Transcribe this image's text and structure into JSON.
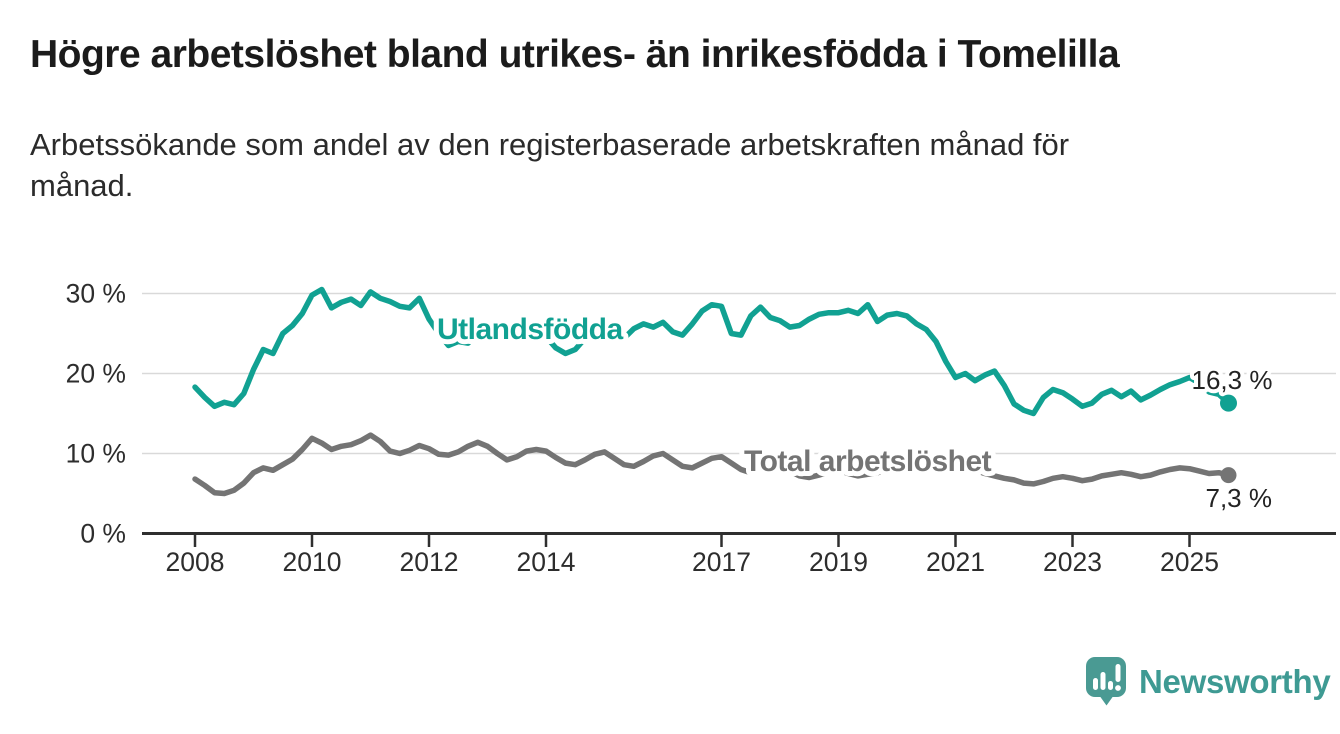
{
  "title": "Högre arbetslöshet bland utrikes- än inrikesfödda i Tomelilla",
  "subtitle": {
    "line1": "Arbetssökande som andel av den registerbaserade arbetskraften månad för",
    "line2": "månad."
  },
  "brand": {
    "name": "Newsworthy"
  },
  "colors": {
    "teal_line": "#11a192",
    "gray_line": "#747474",
    "grid": "#d9d9d9",
    "axis": "#2f2f2f",
    "axis_text": "#2d2d2d",
    "end_label_text": "#232323",
    "logo_teal": "#4a9a93"
  },
  "chart_data": {
    "type": "line",
    "title": "Högre arbetslöshet bland utrikes- än inrikesfödda i Tomelilla",
    "subtitle": "Arbetssökande som andel av den registerbaserade arbetskraften månad för månad.",
    "unit": "%",
    "grid": true,
    "x_axis": {
      "start_year": 2008,
      "points_per_year": 6,
      "tick_years": [
        2008,
        2010,
        2012,
        2014,
        2017,
        2019,
        2021,
        2023,
        2025
      ]
    },
    "y_axis": {
      "min": 0,
      "max": 32,
      "tick_values": [
        0,
        10,
        20,
        30
      ],
      "tick_labels": [
        "0 %",
        "10 %",
        "20 %",
        "30 %"
      ]
    },
    "series": [
      {
        "name": "Utlandsfödda",
        "color": "#11a192",
        "end_value": 16.3,
        "end_label": "16,3 %",
        "values": [
          18.3,
          17.0,
          15.9,
          16.4,
          16.1,
          17.5,
          20.5,
          23.0,
          22.5,
          25.0,
          26.0,
          27.5,
          29.8,
          30.5,
          28.2,
          28.9,
          29.3,
          28.5,
          30.2,
          29.4,
          29.0,
          28.4,
          28.2,
          29.4,
          26.8,
          25.0,
          23.5,
          24.0,
          23.8,
          25.0,
          25.5,
          24.6,
          24.1,
          25.1,
          24.4,
          25.4,
          24.6,
          23.2,
          22.5,
          23.0,
          24.4,
          25.2,
          25.4,
          24.2,
          24.4,
          25.6,
          26.2,
          25.8,
          26.4,
          25.2,
          24.8,
          26.2,
          27.8,
          28.6,
          28.4,
          25.0,
          24.8,
          27.2,
          28.3,
          27.0,
          26.6,
          25.8,
          26.0,
          26.8,
          27.4,
          27.6,
          27.6,
          27.9,
          27.5,
          28.6,
          26.5,
          27.3,
          27.5,
          27.2,
          26.2,
          25.5,
          24.0,
          21.5,
          19.5,
          20.0,
          19.1,
          19.8,
          20.3,
          18.5,
          16.2,
          15.4,
          15.0,
          17.0,
          18.0,
          17.6,
          16.8,
          15.9,
          16.3,
          17.4,
          17.9,
          17.1,
          17.8,
          16.7,
          17.3,
          18.0,
          18.6,
          19.0,
          19.5,
          18.8,
          17.7,
          17.4,
          16.3
        ]
      },
      {
        "name": "Total arbetslöshet",
        "color": "#747474",
        "end_value": 7.3,
        "end_label": "7,3 %",
        "values": [
          6.8,
          6.0,
          5.1,
          5.0,
          5.4,
          6.3,
          7.6,
          8.2,
          7.9,
          8.6,
          9.3,
          10.5,
          11.9,
          11.3,
          10.5,
          10.9,
          11.1,
          11.6,
          12.3,
          11.5,
          10.3,
          10.0,
          10.4,
          11.0,
          10.6,
          9.9,
          9.8,
          10.2,
          10.9,
          11.4,
          10.9,
          10.0,
          9.2,
          9.6,
          10.3,
          10.5,
          10.3,
          9.5,
          8.8,
          8.6,
          9.2,
          9.9,
          10.2,
          9.4,
          8.6,
          8.4,
          9.0,
          9.7,
          10.0,
          9.2,
          8.4,
          8.2,
          8.8,
          9.4,
          9.6,
          8.8,
          8.0,
          7.6,
          8.2,
          8.6,
          8.4,
          7.8,
          7.2,
          7.0,
          7.3,
          7.7,
          7.9,
          7.5,
          7.2,
          7.4,
          7.6,
          8.0,
          8.4,
          8.7,
          9.0,
          9.2,
          9.0,
          8.8,
          8.6,
          8.3,
          7.9,
          7.5,
          7.2,
          6.9,
          6.7,
          6.3,
          6.2,
          6.5,
          6.9,
          7.1,
          6.9,
          6.6,
          6.8,
          7.2,
          7.4,
          7.6,
          7.4,
          7.1,
          7.3,
          7.7,
          8.0,
          8.2,
          8.1,
          7.8,
          7.5,
          7.6,
          7.3
        ]
      }
    ],
    "legend_position": "inline-labels"
  }
}
